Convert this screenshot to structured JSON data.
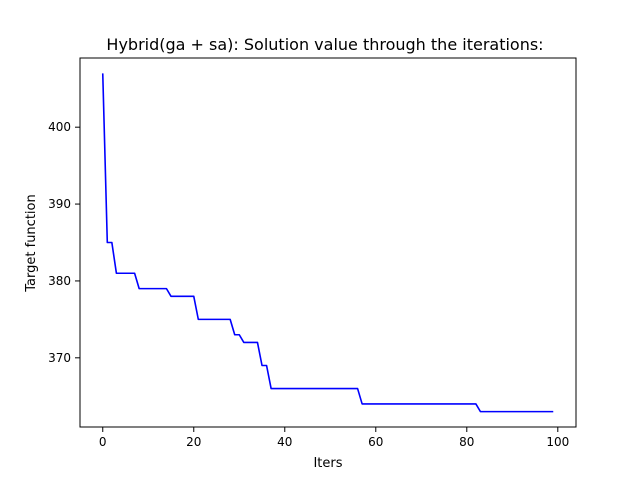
{
  "chart_data": {
    "type": "line",
    "title": "Hybrid(ga + sa): Solution value through the iterations:",
    "xlabel": "Iters",
    "ylabel": "Target function",
    "xlim": [
      -5,
      104
    ],
    "ylim": [
      361,
      409
    ],
    "xticks": [
      0,
      20,
      40,
      60,
      80,
      100
    ],
    "yticks": [
      370,
      380,
      390,
      400
    ],
    "grid": false,
    "series": [
      {
        "color": "#0000ff",
        "x": [
          0,
          1,
          2,
          3,
          7,
          8,
          14,
          15,
          20,
          21,
          28,
          29,
          30,
          31,
          34,
          35,
          36,
          37,
          56,
          57,
          82,
          83,
          99
        ],
        "y": [
          407,
          385,
          385,
          381,
          381,
          379,
          379,
          378,
          378,
          375,
          375,
          373,
          373,
          372,
          372,
          369,
          369,
          366,
          366,
          364,
          364,
          363,
          363
        ]
      }
    ]
  }
}
